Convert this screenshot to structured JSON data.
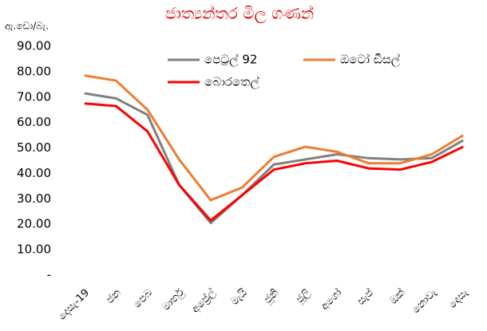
{
  "chart_data": {
    "type": "line",
    "title": "ජාත්‍යන්තර මිල ගණන්",
    "y_label": "ඇ.ඩො/බැ.",
    "categories": [
      "දෙසැ-19",
      "ජන",
      "පෙබ",
      "මාර්තු",
      "අප්‍රේල්",
      "මැයි",
      "ජූනි",
      "ජූලි",
      "අගෝ",
      "සැප්",
      "ඔක්",
      "නොවැ",
      "දෙසැ"
    ],
    "series": [
      {
        "name": "පෙට්‍රල් 92",
        "color": "#808080",
        "values": [
          71.5,
          69.5,
          63,
          35.5,
          20.5,
          31.5,
          43.5,
          45.5,
          47.5,
          46,
          45.5,
          46,
          53
        ]
      },
      {
        "name": "ඔටෝ ඩීසල්",
        "color": "#ed7d31",
        "values": [
          78.5,
          76.5,
          65,
          45.5,
          29.5,
          34.5,
          46.5,
          50.5,
          48.5,
          44,
          44,
          47.5,
          55
        ]
      },
      {
        "name": "බොරතෙල්",
        "color": "#ff0000",
        "values": [
          67.5,
          66.5,
          56.5,
          35.5,
          21.5,
          31.5,
          41.5,
          44,
          45,
          42,
          41.5,
          44.5,
          50.5
        ]
      }
    ],
    "ylim": [
      0,
      90
    ],
    "yticks": [
      {
        "value": 0,
        "label": "-"
      },
      {
        "value": 10,
        "label": "10.00"
      },
      {
        "value": 20,
        "label": "20.00"
      },
      {
        "value": 30,
        "label": "30.00"
      },
      {
        "value": 40,
        "label": "40.00"
      },
      {
        "value": 50,
        "label": "50.00"
      },
      {
        "value": 60,
        "label": "60.00"
      },
      {
        "value": 70,
        "label": "70.00"
      },
      {
        "value": 80,
        "label": "80.00"
      },
      {
        "value": 90,
        "label": "90.00"
      }
    ],
    "grid": false
  }
}
